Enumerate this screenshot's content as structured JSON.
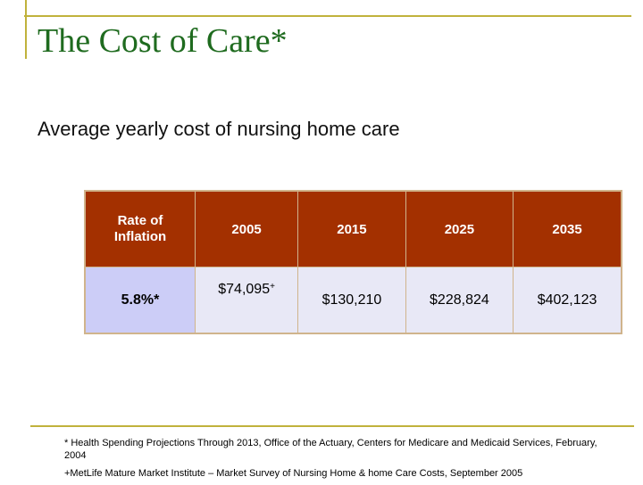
{
  "slide": {
    "title": "The Cost of Care*",
    "subtitle": "Average yearly cost of nursing home care"
  },
  "table": {
    "headers": [
      "Rate of Inflation",
      "2005",
      "2015",
      "2025",
      "2035"
    ],
    "row": {
      "rate": "5.8%*",
      "values": [
        "$74,095",
        "$130,210",
        "$228,824",
        "$402,123"
      ],
      "first_value_marker": "+"
    }
  },
  "footnotes": [
    "* Health Spending Projections Through 2013, Office of the Actuary, Centers for Medicare and Medicaid Services, February, 2004",
    "+MetLife Mature Market Institute – Market Survey of Nursing Home & home Care Costs, September 2005"
  ],
  "colors": {
    "title": "#1f6b1f",
    "frame": "#c0b23c",
    "header_bg": "#a33000",
    "rate_cell_bg": "#cccdf7",
    "body_cell_bg": "#e8e8f6"
  }
}
